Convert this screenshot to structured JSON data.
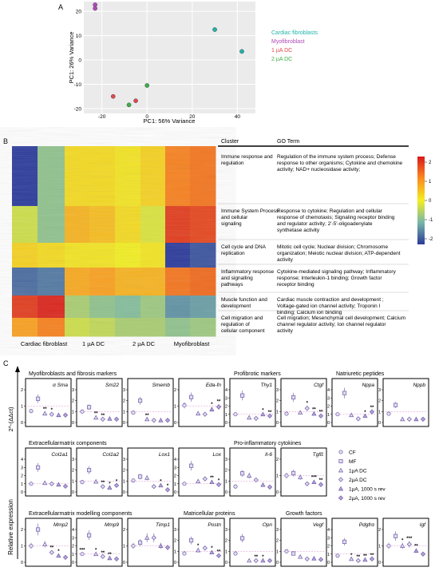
{
  "panel_labels": {
    "a": "A",
    "b": "B",
    "c": "C"
  },
  "panel_a": {
    "chart_data": {
      "type": "scatter",
      "xlabel": "PC1: 56% Variance",
      "ylabel": "PC1: 26% Variance",
      "xlim": [
        -28,
        48
      ],
      "ylim": [
        -22,
        24
      ],
      "xticks": [
        "-20",
        "0",
        "20",
        "40"
      ],
      "yticks": [
        "-20",
        "-10",
        "0",
        "10",
        "20"
      ],
      "series": [
        {
          "name": "Cardiac fibroblasts",
          "color": "#1fb3a9",
          "points": [
            [
              30,
              12.5
            ],
            [
              42,
              3.5
            ]
          ]
        },
        {
          "name": "Myofibroblast",
          "color": "#b04ab8",
          "points": [
            [
              -23,
              22.7
            ],
            [
              -23,
              21.2
            ]
          ]
        },
        {
          "name": "1 µA DC",
          "color": "#e0484b",
          "points": [
            [
              -15,
              -15
            ],
            [
              -5,
              -16.8
            ]
          ]
        },
        {
          "name": "2 µA DC",
          "color": "#3fae48",
          "points": [
            [
              -8,
              -18.5
            ],
            [
              0,
              -10.5
            ]
          ]
        }
      ]
    }
  },
  "panel_b": {
    "columns": [
      "Cardiac fibroblast",
      "1 µA DC",
      "2 µA DC",
      "Myofibroblast"
    ],
    "cluster_header": "Cluster",
    "goterm_header": "GO Term",
    "colorbar_ticks": [
      "2",
      "1",
      "0",
      "-1",
      "-2"
    ],
    "rows": [
      {
        "cluster": "Immune response and regulation",
        "go": "Regulation of the immune system process; Defense response to other organisms; Cytokine and chemokine activity; NAD+ nucleosidase activity;"
      },
      {
        "cluster": "Immune System Process and cellular signaling",
        "go": "Response to cytokine; Regulation and cellular response of chemotaxis; Signaling receptor binding and regulator activity; 2'-5'-oligoadenylate synthetase activity"
      },
      {
        "cluster": "Cell cycle and DNA replication",
        "go": "Mitotic cell cycle; Nuclear division; Chromosome organization; Meiotic nuclear division; ATP-dependent activity"
      },
      {
        "cluster": "Inflammatory response and signalling pathways",
        "go": "Cytokine-mediated signaling pathway; Inflammatory response; Interleukin-1 binding; Growth factor receptor binding"
      },
      {
        "cluster": "Muscle function and development",
        "go": "Cardiac muscle contraction and development ; Voltage-gated ion channel activity; Troponin I binding; Calcium ion binding"
      },
      {
        "cluster": "Cell migration and regulation of cellular component",
        "go": "Cell migration; Mesenchymal cell development; Calcium channel regulator activity; Ion channel regulator activity"
      }
    ]
  },
  "panel_c": {
    "yaxis_label": "Relative expression",
    "yaxis_formula": "2^-(ΔΔct)",
    "legend": [
      {
        "label": "CF",
        "symbol": "circle"
      },
      {
        "label": "MF",
        "symbol": "square"
      },
      {
        "label": "1µA DC",
        "symbol": "triangle"
      },
      {
        "label": "2µA DC",
        "symbol": "diamond"
      },
      {
        "label": "1µA, 1000 s rev",
        "symbol": "triangle-filled"
      },
      {
        "label": "2µA, 1000 s rev",
        "symbol": "diamond-filled"
      }
    ],
    "section_titles": [
      "Myofibroblasts and fibrosis markers",
      "Profibrotic markers",
      "Natriuretic peptides",
      "Extracellularmatrix components",
      "Pro-inflammatory cytokines",
      "Extracellularmatrix modelling components",
      "Matricellular proteins",
      "Growth factors"
    ],
    "panels": [
      {
        "gene": "α Sma",
        "ymax": 2,
        "values": [
          0.7,
          1.45,
          0.55,
          0.5,
          0.45,
          0.45
        ],
        "sig": [
          "",
          "",
          "**",
          "*",
          "",
          ""
        ]
      },
      {
        "gene": "Sm22",
        "ymax": 3,
        "values": [
          1.0,
          1.4,
          0.45,
          0.3,
          0.35,
          0.3
        ],
        "sig": [
          "",
          "",
          "**",
          "**",
          "",
          ""
        ]
      },
      {
        "gene": "Smemb",
        "ymax": 3,
        "values": [
          0.9,
          2.0,
          0.3,
          0.2,
          0.2,
          0.2
        ],
        "sig": [
          "",
          "",
          "**",
          "",
          "",
          ""
        ]
      },
      {
        "gene": "Eda-fn",
        "ymax": 2,
        "values": [
          1.05,
          1.55,
          0.55,
          0.5,
          0.8,
          0.95
        ],
        "sig": [
          "",
          "",
          "",
          "",
          "*",
          "**"
        ]
      },
      {
        "gene": "Thy1",
        "ymax": 4,
        "values": [
          1.0,
          3.3,
          0.6,
          0.5,
          1.0,
          0.8
        ],
        "sig": [
          "",
          "",
          "",
          "",
          "*",
          "**"
        ]
      },
      {
        "gene": "Ctgf",
        "ymax": 3,
        "values": [
          0.8,
          2.3,
          0.9,
          1.3,
          0.8,
          0.6
        ],
        "sig": [
          "",
          "",
          "",
          "*",
          "**",
          "**"
        ]
      },
      {
        "gene": "Nppa",
        "ymax": 4,
        "values": [
          1.0,
          3.6,
          0.9,
          0.45,
          0.8,
          1.3
        ],
        "sig": [
          "",
          "",
          "",
          "",
          "*",
          "**"
        ]
      },
      {
        "gene": "Nppb",
        "ymax": 3,
        "values": [
          0.8,
          1.6,
          0.3,
          0.3,
          0.3,
          0.3
        ],
        "sig": [
          "",
          "",
          "",
          "",
          "",
          ""
        ]
      },
      {
        "gene": "Col1a1",
        "ymax": 4,
        "values": [
          1.0,
          3.0,
          1.1,
          1.0,
          0.9,
          0.7
        ],
        "sig": [
          "",
          "",
          "",
          "",
          "",
          ""
        ]
      },
      {
        "gene": "Col1a2",
        "ymax": 3,
        "values": [
          0.9,
          2.0,
          0.95,
          0.5,
          0.4,
          0.6
        ],
        "sig": [
          "",
          "",
          "",
          "**",
          "*",
          "*"
        ]
      },
      {
        "gene": "Lox1",
        "ymax": 3,
        "values": [
          1.05,
          1.4,
          1.3,
          0.5,
          0.6,
          0.2
        ],
        "sig": [
          "",
          "",
          "",
          "",
          "*",
          "*"
        ]
      },
      {
        "gene": "Lox",
        "ymax": 4,
        "values": [
          1.0,
          3.2,
          1.3,
          1.6,
          1.2,
          0.9
        ],
        "sig": [
          "",
          "",
          "",
          "",
          "**",
          "*"
        ]
      },
      {
        "gene": "Il-6",
        "ymax": 3,
        "values": [
          0.5,
          1.7,
          1.5,
          1.1,
          0.65,
          0.45
        ],
        "sig": [
          "",
          "",
          "",
          "",
          "",
          ""
        ]
      },
      {
        "gene": "Tgfß",
        "ymax": 2,
        "values": [
          1.0,
          1.15,
          0.9,
          0.5,
          0.6,
          0.45
        ],
        "sig": [
          "",
          "",
          "",
          "",
          "***",
          "**"
        ]
      },
      {
        "gene": "Mmp2",
        "ymax": 2,
        "values": [
          1.0,
          2.0,
          1.1,
          0.6,
          0.4,
          0.3
        ],
        "sig": [
          "",
          "",
          "",
          "**",
          "*",
          ""
        ]
      },
      {
        "gene": "Mmp9",
        "ymax": 4,
        "values": [
          1.0,
          3.3,
          1.0,
          0.7,
          0.5,
          0.4
        ],
        "sig": [
          "***",
          "",
          "*",
          "**",
          "**",
          ""
        ]
      },
      {
        "gene": "Timp1",
        "ymax": 2,
        "values": [
          1.0,
          1.2,
          1.5,
          1.5,
          1.0,
          0.9
        ],
        "sig": [
          "",
          "",
          "",
          "",
          "",
          ""
        ]
      },
      {
        "gene": "Postn",
        "ymax": 3,
        "values": [
          0.8,
          2.0,
          1.1,
          1.3,
          0.9,
          0.6
        ],
        "sig": [
          "",
          "",
          "*",
          "",
          "*",
          "**"
        ]
      },
      {
        "gene": "Opn",
        "ymax": 3,
        "values": [
          0.8,
          2.2,
          0.15,
          0.15,
          0.15,
          0.15
        ],
        "sig": [
          "",
          "",
          "",
          "**",
          "*",
          ""
        ]
      },
      {
        "gene": "Vegf",
        "ymax": 3,
        "values": [
          1.0,
          0.8,
          0.5,
          0.3,
          0.35,
          0.25
        ],
        "sig": [
          "",
          "",
          "",
          "",
          "",
          ""
        ]
      },
      {
        "gene": "Pdgfrα",
        "ymax": 4,
        "values": [
          0.8,
          2.5,
          0.4,
          0.2,
          0.3,
          0.4
        ],
        "sig": [
          "",
          "",
          "*",
          "**",
          "**",
          "**"
        ]
      },
      {
        "gene": "Igf",
        "ymax": 2,
        "values": [
          1.0,
          1.6,
          1.0,
          1.1,
          0.7,
          0.5
        ],
        "sig": [
          "",
          "",
          "*",
          "***",
          "**",
          ""
        ]
      }
    ]
  }
}
